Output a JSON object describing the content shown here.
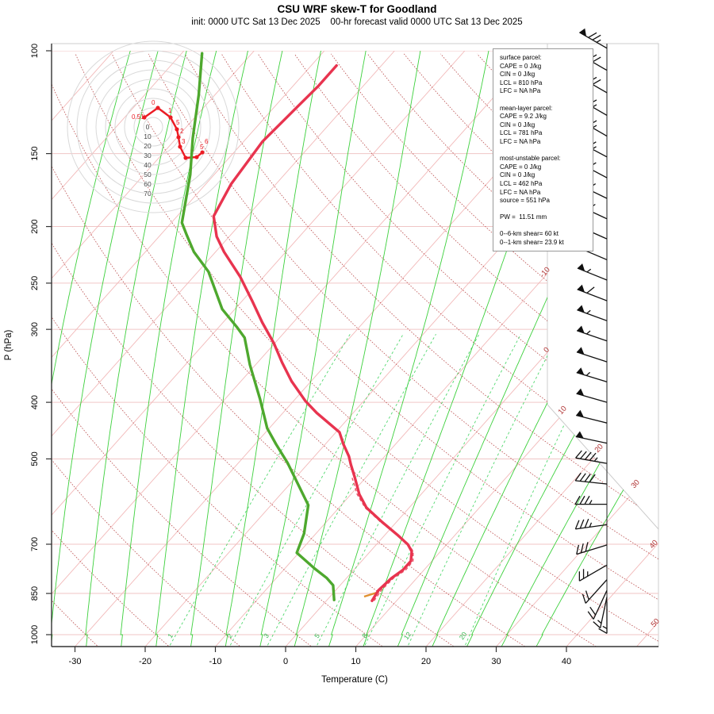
{
  "title": "CSU WRF skew-T for Goodland",
  "subtitle": "init: 0000 UTC Sat 13 Dec 2025    00-hr forecast valid 0000 UTC Sat 13 Dec 2025",
  "infobox": {
    "lines": [
      "surface parcel:",
      "CAPE = 0 J/kg",
      "CIN = 0 J/kg",
      "LCL = 810 hPa",
      "LFC = NA hPa",
      "",
      "mean-layer parcel:",
      "CAPE = 9.2 J/kg",
      "CIN = 0 J/kg",
      "LCL = 781 hPa",
      "LFC = NA hPa",
      "",
      "most-unstable parcel:",
      "CAPE = 0 J/kg",
      "CIN = 0 J/kg",
      "LCL = 462 hPa",
      "LFC = NA hPa",
      "source = 551 hPa",
      "",
      "PW =  11.51 mm",
      "",
      "0--6-km shear= 60 kt",
      "0--1-km shear= 23.9 kt"
    ]
  },
  "chart_data": {
    "type": "line",
    "variant": "skew-T log-p diagram with hodograph and wind barbs",
    "title": "CSU WRF skew-T for Goodland",
    "xlabel": "Temperature (C)",
    "ylabel": "P (hPa)",
    "x_ticks": [
      -30,
      -20,
      -10,
      0,
      10,
      20,
      30,
      40
    ],
    "pressure_ticks": [
      100,
      150,
      200,
      250,
      300,
      400,
      500,
      700,
      850,
      1000
    ],
    "pressure_range": [
      100,
      1000
    ],
    "isotherm_edge_labels": [
      "-10",
      "0",
      "10",
      "20",
      "30",
      "40",
      "50"
    ],
    "mixing_ratio_labels": [
      "1",
      "2",
      "3",
      "5",
      "8",
      "12",
      "20"
    ],
    "mixing_ratio_values_gkg": [
      1,
      2,
      3,
      5,
      8,
      12,
      20
    ],
    "temperature_profile": {
      "pressure_hPa": [
        875,
        840,
        800,
        775,
        748,
        720,
        701,
        674,
        640,
        606,
        575,
        539,
        511,
        495,
        472,
        450,
        417,
        398,
        368,
        342,
        317,
        292,
        268,
        244,
        221,
        208,
        192,
        169,
        143,
        126,
        115,
        106
      ],
      "temp_C": [
        6.5,
        6.1,
        6.4,
        7.0,
        7.0,
        5.9,
        4.5,
        1.7,
        -2.2,
        -6.1,
        -8.8,
        -11.5,
        -13.8,
        -15.1,
        -17.4,
        -19.5,
        -25.2,
        -28.3,
        -32.8,
        -36.5,
        -40.1,
        -44.4,
        -48.6,
        -53.3,
        -58.8,
        -61.8,
        -64.8,
        -66.4,
        -67.3,
        -66.8,
        -66.4,
        -66.4
      ]
    },
    "dewpoint_profile": {
      "pressure_hPa": [
        872,
        823,
        800,
        770,
        724,
        671,
        600,
        508,
        472,
        443,
        395,
        345,
        310,
        297,
        277,
        239,
        221,
        207,
        197,
        163,
        141,
        119,
        101
      ],
      "dewpoint_C": [
        1.0,
        -1.0,
        -2.8,
        -5.8,
        -10.3,
        -11.7,
        -14.7,
        -23.0,
        -27.0,
        -30.3,
        -35.0,
        -40.8,
        -45.0,
        -47.5,
        -51.8,
        -58.5,
        -63.1,
        -66.2,
        -68.5,
        -73.4,
        -77.7,
        -82.3,
        -87.1
      ]
    },
    "parcel_profile": {
      "pressure_hPa": [
        875,
        840,
        800,
        775,
        748,
        720,
        701,
        674,
        640,
        606,
        575,
        539
      ],
      "temp_C": [
        6.8,
        6.5,
        6.7,
        7.4,
        7.3,
        6.1,
        4.6,
        1.6,
        -2.4,
        -6.3,
        -9.1,
        -11.9
      ]
    },
    "wind_barbs": [
      {
        "p": 99,
        "dir": 300,
        "kt": 75
      },
      {
        "p": 108,
        "dir": 300,
        "kt": 70
      },
      {
        "p": 118,
        "dir": 300,
        "kt": 70
      },
      {
        "p": 129,
        "dir": 300,
        "kt": 65
      },
      {
        "p": 140,
        "dir": 300,
        "kt": 65
      },
      {
        "p": 152,
        "dir": 298,
        "kt": 65
      },
      {
        "p": 165,
        "dir": 298,
        "kt": 60
      },
      {
        "p": 179,
        "dir": 296,
        "kt": 60
      },
      {
        "p": 194,
        "dir": 295,
        "kt": 60
      },
      {
        "p": 210,
        "dir": 294,
        "kt": 55
      },
      {
        "p": 228,
        "dir": 293,
        "kt": 55
      },
      {
        "p": 247,
        "dir": 292,
        "kt": 55
      },
      {
        "p": 268,
        "dir": 291,
        "kt": 60
      },
      {
        "p": 290,
        "dir": 290,
        "kt": 55
      },
      {
        "p": 314,
        "dir": 289,
        "kt": 55
      },
      {
        "p": 341,
        "dir": 288,
        "kt": 50
      },
      {
        "p": 369,
        "dir": 287,
        "kt": 55
      },
      {
        "p": 400,
        "dir": 286,
        "kt": 50
      },
      {
        "p": 434,
        "dir": 284,
        "kt": 50
      },
      {
        "p": 470,
        "dir": 282,
        "kt": 50
      },
      {
        "p": 509,
        "dir": 280,
        "kt": 45
      },
      {
        "p": 552,
        "dir": 276,
        "kt": 40
      },
      {
        "p": 598,
        "dir": 270,
        "kt": 35
      },
      {
        "p": 648,
        "dir": 262,
        "kt": 35
      },
      {
        "p": 702,
        "dir": 253,
        "kt": 30
      },
      {
        "p": 760,
        "dir": 240,
        "kt": 25
      },
      {
        "p": 805,
        "dir": 222,
        "kt": 20
      },
      {
        "p": 840,
        "dir": 205,
        "kt": 20
      },
      {
        "p": 862,
        "dir": 192,
        "kt": 15
      },
      {
        "p": 878,
        "dir": 180,
        "kt": 15
      }
    ],
    "hodograph": {
      "ring_step_kt": 10,
      "ring_labels": [
        "0",
        "10",
        "20",
        "30",
        "40",
        "50",
        "60",
        "70"
      ],
      "trace_u_kt": [
        -9.2,
        5.0,
        18.3,
        25.0,
        26.7,
        28.3,
        34.2,
        45.8,
        51.7
      ],
      "trace_v_kt": [
        -10.0,
        -20.0,
        -10.0,
        2.5,
        10.8,
        20.8,
        32.5,
        31.7,
        26.7
      ],
      "point_labels": [
        "0.51",
        "0",
        "1",
        "5",
        "2",
        "3",
        "4",
        "5",
        "6"
      ]
    },
    "colors": {
      "temperature": "#e8344f",
      "dewpoint": "#4ea82e",
      "parcel": "#e8344f",
      "isotherm": "#f2b9b9",
      "dry_adiabat": "#b03232",
      "moist_adiabat": "#32cd32",
      "mixing_ratio": "#3fd45f",
      "gridline": "#f0c6c6",
      "barb": "#111111",
      "hodograph_trace": "#ec1c24",
      "edge_label": "#b03232",
      "lcl_tick": "#e09030"
    }
  }
}
